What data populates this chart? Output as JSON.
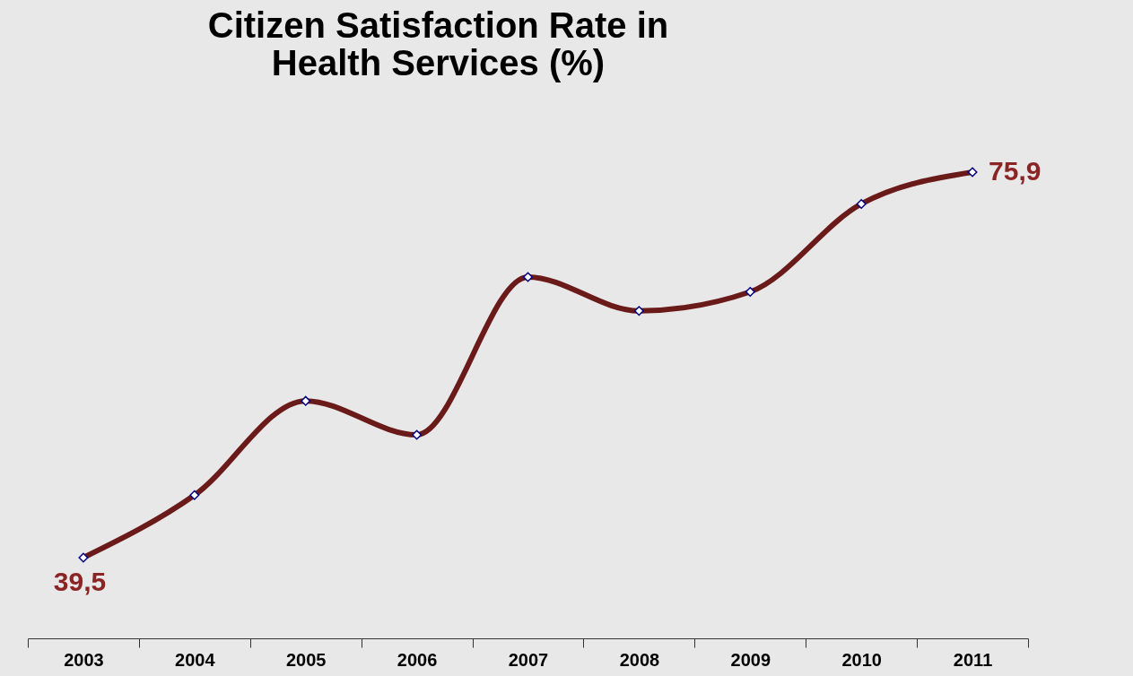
{
  "chart_data": {
    "type": "line",
    "title": [
      "Citizen Satisfaction Rate in",
      "Health Services (%)"
    ],
    "categories": [
      "2003",
      "2004",
      "2005",
      "2006",
      "2007",
      "2008",
      "2009",
      "2010",
      "2011"
    ],
    "series": [
      {
        "color": "#6b1a1a",
        "values": [
          39.5,
          45.4,
          54.3,
          51.1,
          66.0,
          62.8,
          64.6,
          72.9,
          75.9
        ],
        "value_labels": [
          "39,5",
          null,
          null,
          null,
          null,
          null,
          null,
          null,
          "75,9"
        ]
      }
    ],
    "tick_labels": "x",
    "grid": false,
    "marker": "diamond",
    "line_style": "solid"
  }
}
